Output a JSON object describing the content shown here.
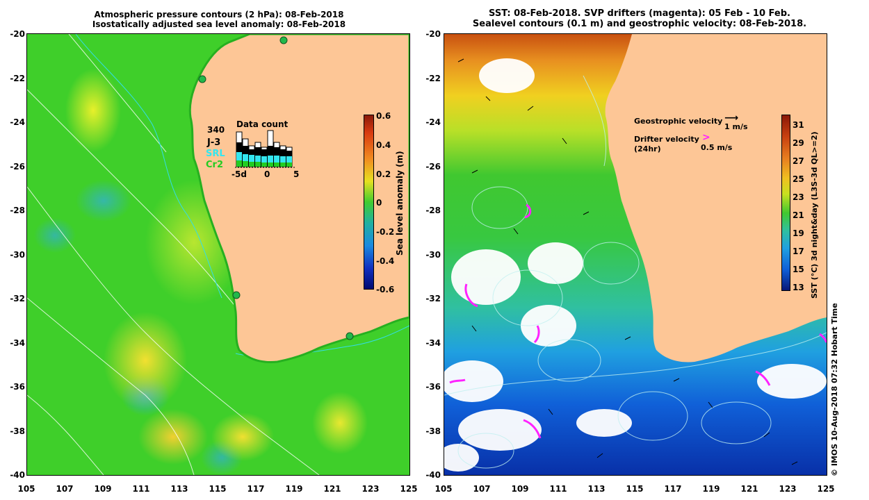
{
  "left_panel": {
    "title_line1": "Atmospheric pressure contours (2 hPa): 08-Feb-2018",
    "title_line2": "Isostatically adjusted sea level anomaly: 08-Feb-2018",
    "colorbar_label": "Sea level anomaly (m)",
    "colorbar_ticks": [
      "0.6",
      "0.4",
      "0.2",
      "0",
      "-0.2",
      "-0.4",
      "-0.6"
    ],
    "data_count": {
      "title": "Data count",
      "count_label": "340",
      "missions": [
        {
          "name": "J-3",
          "color": "#000000"
        },
        {
          "name": "SRL",
          "color": "#33e6f0"
        },
        {
          "name": "Cr2",
          "color": "#22cc22"
        }
      ],
      "x_ticks": [
        "-5d",
        "0",
        "5"
      ]
    }
  },
  "right_panel": {
    "title_line1": "SST: 08-Feb-2018. SVP drifters (magenta): 05 Feb - 10 Feb.",
    "title_line2": "Sealevel contours (0.1 m) and geostrophic velocity: 08-Feb-2018.",
    "colorbar_label": "SST (°C) 3d night&day (L3S-3d QL>=2)",
    "colorbar_ticks": [
      "31",
      "29",
      "27",
      "25",
      "23",
      "21",
      "19",
      "17",
      "15",
      "13"
    ],
    "legend": {
      "geostrophic_label": "Geostrophic velocity",
      "geostrophic_scale": "1 m/s",
      "drifter_label": "Drifter velocity",
      "drifter_sub": "(24hr)",
      "drifter_scale": "0.5 m/s"
    },
    "credit": "© IMOS 10-Aug-2018 07:32 Hobart Time"
  },
  "axes": {
    "y_ticks": [
      "-20",
      "-22",
      "-24",
      "-26",
      "-28",
      "-30",
      "-32",
      "-34",
      "-36",
      "-38",
      "-40"
    ],
    "x_ticks": [
      "105",
      "107",
      "109",
      "111",
      "113",
      "115",
      "117",
      "119",
      "121",
      "123",
      "125"
    ]
  },
  "colors": {
    "land": "#fdc696",
    "ocean_green": "#3fcf2a",
    "ocean_yellow": "#e0f020",
    "ocean_cyan": "#30b0c0"
  }
}
